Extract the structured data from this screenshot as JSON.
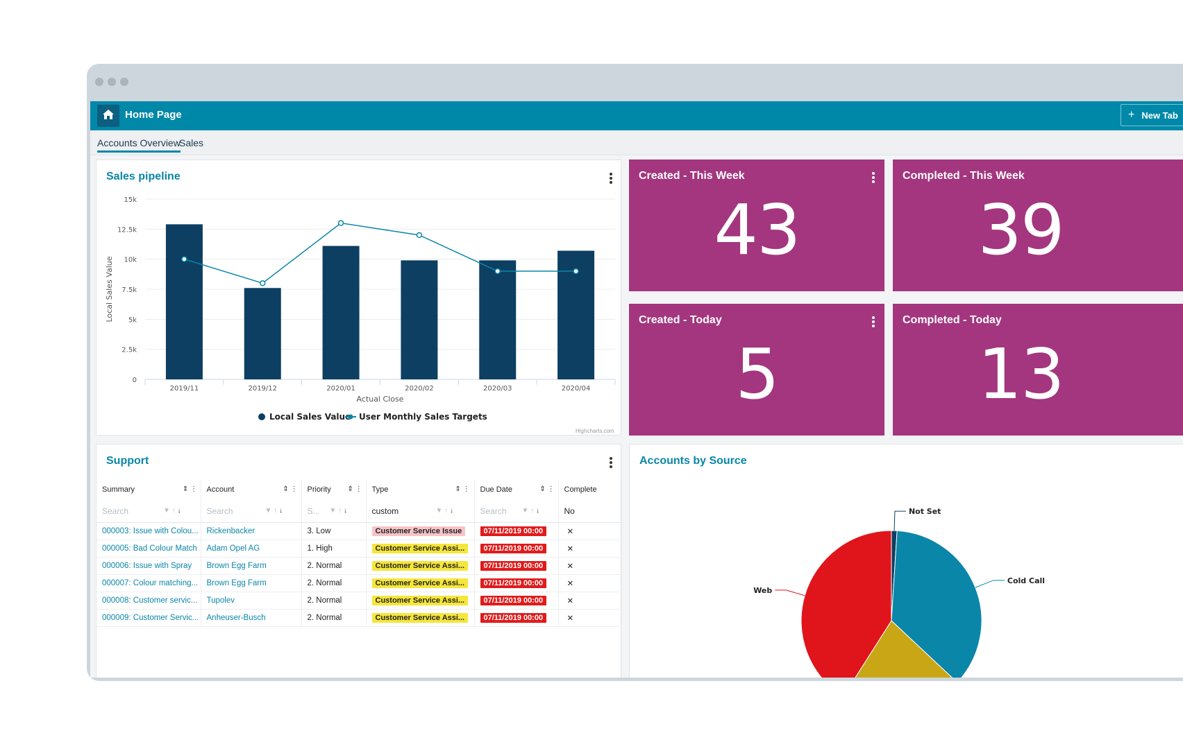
{
  "topbar": {
    "title": "Home Page",
    "new_tab_label": "New Tab"
  },
  "subtabs": [
    {
      "label": "Accounts Overview",
      "active": true
    },
    {
      "label": "Sales",
      "active": false
    }
  ],
  "sales_pipeline": {
    "title": "Sales pipeline",
    "credit": "Highcharts.com"
  },
  "tiles": [
    {
      "title": "Created - This Week",
      "value": "43"
    },
    {
      "title": "Completed - This Week",
      "value": "39"
    },
    {
      "title": "Created - Today",
      "value": "5"
    },
    {
      "title": "Completed - Today",
      "value": "13"
    }
  ],
  "support": {
    "title": "Support",
    "columns": [
      "Summary",
      "Account",
      "Priority",
      "Type",
      "Due Date",
      "Complete"
    ],
    "filters": [
      "Search",
      "Search",
      "S...",
      "custom",
      "Search",
      "No"
    ],
    "rows": [
      {
        "summary": "000003: Issue with Colou...",
        "account": "Rickenbacker",
        "priority": "3. Low",
        "type": "Customer Service Issue",
        "type_style": "pink",
        "due": "07/11/2019 00:00",
        "complete": "✕"
      },
      {
        "summary": "000005: Bad Colour Match",
        "account": "Adam Opel AG",
        "priority": "1. High",
        "type": "Customer Service Assi...",
        "type_style": "yellow",
        "due": "07/11/2019 00:00",
        "complete": "✕"
      },
      {
        "summary": "000006: Issue with Spray",
        "account": "Brown Egg Farm",
        "priority": "2. Normal",
        "type": "Customer Service Assi...",
        "type_style": "yellow",
        "due": "07/11/2019 00:00",
        "complete": "✕"
      },
      {
        "summary": "000007: Colour matching...",
        "account": "Brown Egg Farm",
        "priority": "2. Normal",
        "type": "Customer Service Assi...",
        "type_style": "yellow",
        "due": "07/11/2019 00:00",
        "complete": "✕"
      },
      {
        "summary": "000008: Customer servic...",
        "account": "Tupolev",
        "priority": "2. Normal",
        "type": "Customer Service Assi...",
        "type_style": "yellow",
        "due": "07/11/2019 00:00",
        "complete": "✕"
      },
      {
        "summary": "000009: Customer Servic...",
        "account": "Anheuser-Busch",
        "priority": "2. Normal",
        "type": "Customer Service Assi...",
        "type_style": "yellow",
        "due": "07/11/2019 00:00",
        "complete": "✕"
      }
    ]
  },
  "accounts_by_source": {
    "title": "Accounts by Source"
  },
  "colors": {
    "topbar": "#0088a9",
    "tile": "#a3367e",
    "bar": "#0c3f62",
    "line": "#0a86a8",
    "pie_web": "#e0141b",
    "pie_cold_call": "#0a86a8",
    "pie_not_set": "#0c3f62",
    "pie_other": "#c9a615"
  },
  "chart_data": [
    {
      "type": "bar",
      "categories": [
        "2019/11",
        "2019/12",
        "2020/01",
        "2020/02",
        "2020/03",
        "2020/04"
      ],
      "series": [
        {
          "name": "Local Sales Value",
          "type": "bar",
          "values": [
            12900,
            7600,
            11100,
            9900,
            9900,
            10700
          ]
        },
        {
          "name": "User Monthly Sales Targets",
          "type": "line",
          "values": [
            10000,
            8000,
            13000,
            12000,
            9000,
            9000
          ]
        }
      ],
      "xlabel": "Actual Close",
      "ylabel": "Local Sales Value",
      "ylim": [
        0,
        15000
      ],
      "yticks": [
        "0",
        "2.5k",
        "5k",
        "7.5k",
        "10k",
        "12.5k",
        "15k"
      ],
      "grid": true,
      "legend": "bottom"
    },
    {
      "type": "pie",
      "slices": [
        {
          "label": "Not Set",
          "value": 1
        },
        {
          "label": "Cold Call",
          "value": 36
        },
        {
          "label": "",
          "value": 22
        },
        {
          "label": "Web",
          "value": 41
        }
      ]
    }
  ]
}
